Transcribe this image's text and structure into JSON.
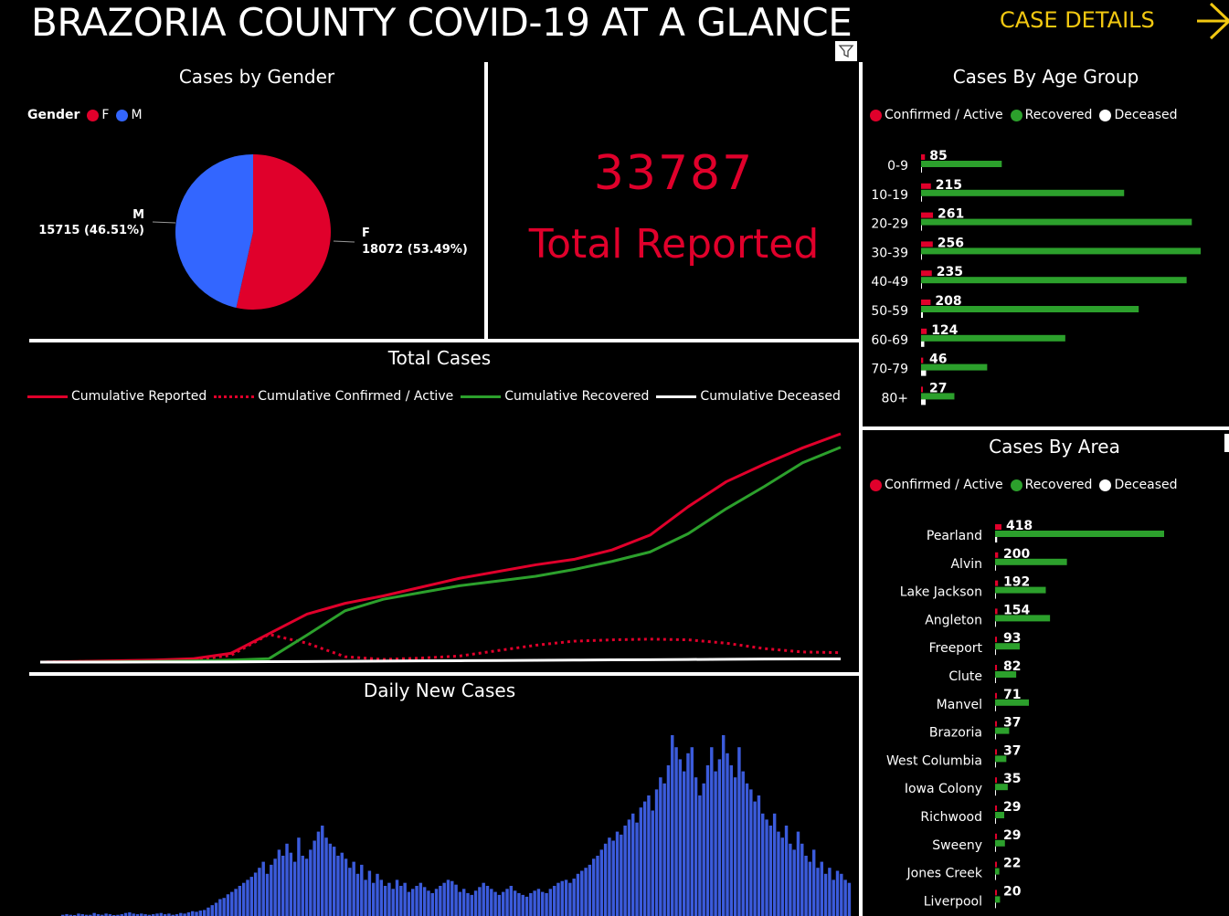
{
  "header": {
    "title": "BRAZORIA COUNTY COVID-19 AT A GLANCE",
    "case_details_label": "CASE DETAILS"
  },
  "kpi": {
    "value": "33787",
    "label": "Total Reported"
  },
  "colors": {
    "confirmed": "#e0002b",
    "recovered": "#2ca02c",
    "deceased": "#ffffff",
    "male": "#3366ff",
    "accent": "#f2c811",
    "daily": "#3b5bdb"
  },
  "gender_panel": {
    "title": "Cases by Gender",
    "legend_title": "Gender",
    "legend": [
      "F",
      "M"
    ],
    "m_letter": "M",
    "m_value": "15715 (46.51%)",
    "f_letter": "F",
    "f_value": "18072 (53.49%)"
  },
  "age_panel": {
    "title": "Cases By Age Group",
    "legend": [
      "Confirmed / Active",
      "Recovered",
      "Deceased"
    ]
  },
  "area_panel": {
    "title": "Cases By Area",
    "legend": [
      "Confirmed / Active",
      "Recovered",
      "Deceased"
    ]
  },
  "total_panel": {
    "title": "Total Cases",
    "legend": [
      "Cumulative Reported",
      "Cumulative Confirmed / Active",
      "Cumulative Recovered",
      "Cumulative Deceased"
    ]
  },
  "daily_panel": {
    "title": "Daily New Cases"
  },
  "chart_data": [
    {
      "type": "pie",
      "title": "Cases by Gender",
      "categories": [
        "F",
        "M"
      ],
      "values": [
        18072,
        15715
      ],
      "percentages": [
        53.49,
        46.51
      ]
    },
    {
      "type": "bar",
      "title": "Cases By Age Group",
      "categories": [
        "0-9",
        "10-19",
        "20-29",
        "30-39",
        "40-49",
        "50-59",
        "60-69",
        "70-79",
        "80+"
      ],
      "series": [
        {
          "name": "Confirmed / Active",
          "values": [
            85,
            215,
            261,
            256,
            235,
            208,
            124,
            46,
            27
          ]
        },
        {
          "name": "Recovered",
          "values": [
            1550,
            3900,
            5200,
            5370,
            5100,
            4180,
            2770,
            1270,
            640
          ]
        },
        {
          "name": "Deceased",
          "values": [
            2,
            4,
            6,
            10,
            20,
            40,
            70,
            110,
            100
          ]
        }
      ]
    },
    {
      "type": "bar",
      "title": "Cases By Area",
      "categories": [
        "Pearland",
        "Alvin",
        "Lake Jackson",
        "Angleton",
        "Freeport",
        "Clute",
        "Manvel",
        "Brazoria",
        "West Columbia",
        "Iowa Colony",
        "Richwood",
        "Sweeny",
        "Jones Creek",
        "Liverpool"
      ],
      "series": [
        {
          "name": "Confirmed / Active",
          "values": [
            418,
            200,
            192,
            154,
            93,
            82,
            71,
            37,
            37,
            35,
            29,
            29,
            22,
            20
          ]
        },
        {
          "name": "Recovered",
          "values": [
            12000,
            5100,
            3600,
            3900,
            1750,
            1500,
            2400,
            1000,
            800,
            900,
            650,
            700,
            300,
            350
          ]
        },
        {
          "name": "Deceased",
          "values": [
            90,
            40,
            30,
            30,
            15,
            12,
            8,
            6,
            6,
            4,
            3,
            4,
            2,
            2
          ]
        }
      ]
    },
    {
      "type": "line",
      "title": "Total Cases",
      "x": [
        0,
        20,
        40,
        60,
        80,
        100,
        120,
        140,
        160,
        180,
        200,
        220,
        240,
        260,
        280,
        300,
        320,
        340,
        360,
        380,
        400,
        420,
        440,
        460,
        480
      ],
      "series": [
        {
          "name": "Cumulative Reported",
          "values": [
            0,
            100,
            200,
            300,
            500,
            1300,
            4200,
            7100,
            8700,
            9800,
            11100,
            12400,
            13400,
            14400,
            15200,
            16600,
            18800,
            23000,
            26700,
            29300,
            31700,
            33787,
            33787,
            33787,
            33787
          ]
        },
        {
          "name": "Cumulative Confirmed / Active",
          "values": [
            0,
            80,
            150,
            200,
            300,
            1000,
            4100,
            2800,
            800,
            400,
            600,
            900,
            1700,
            2500,
            3100,
            3300,
            3400,
            3300,
            2800,
            2000,
            1500,
            1400,
            1400,
            1400,
            1400
          ]
        },
        {
          "name": "Cumulative Recovered",
          "values": [
            0,
            20,
            50,
            100,
            180,
            300,
            500,
            4000,
            7600,
            9300,
            10300,
            11300,
            12000,
            12700,
            13700,
            14900,
            16300,
            19000,
            22700,
            26000,
            29500,
            31800,
            31800,
            31800,
            31800
          ]
        },
        {
          "name": "Cumulative Deceased",
          "values": [
            0,
            0,
            5,
            10,
            20,
            40,
            60,
            90,
            120,
            150,
            180,
            210,
            240,
            270,
            300,
            330,
            360,
            390,
            420,
            450,
            470,
            480,
            480,
            480,
            480
          ]
        }
      ]
    },
    {
      "type": "bar",
      "title": "Daily New Cases",
      "values": [
        2,
        3,
        2,
        1,
        4,
        3,
        2,
        2,
        5,
        3,
        2,
        4,
        3,
        1,
        2,
        3,
        5,
        6,
        4,
        3,
        4,
        3,
        2,
        3,
        4,
        5,
        3,
        4,
        2,
        3,
        5,
        4,
        6,
        8,
        7,
        9,
        10,
        14,
        18,
        22,
        28,
        30,
        36,
        40,
        45,
        50,
        55,
        60,
        65,
        72,
        80,
        90,
        70,
        85,
        95,
        110,
        100,
        120,
        105,
        90,
        130,
        100,
        95,
        110,
        125,
        140,
        150,
        130,
        120,
        115,
        100,
        105,
        95,
        80,
        90,
        70,
        85,
        60,
        75,
        55,
        70,
        60,
        50,
        55,
        45,
        60,
        50,
        55,
        40,
        45,
        50,
        55,
        48,
        42,
        38,
        45,
        50,
        55,
        60,
        58,
        52,
        40,
        45,
        38,
        35,
        42,
        48,
        55,
        50,
        45,
        40,
        35,
        40,
        45,
        50,
        42,
        38,
        35,
        32,
        38,
        42,
        45,
        40,
        38,
        45,
        50,
        55,
        58,
        60,
        55,
        62,
        70,
        75,
        80,
        85,
        95,
        100,
        110,
        120,
        130,
        125,
        140,
        135,
        150,
        160,
        170,
        155,
        180,
        190,
        200,
        175,
        210,
        230,
        220,
        250,
        300,
        280,
        260,
        240,
        270,
        280,
        230,
        200,
        220,
        250,
        280,
        240,
        260,
        300,
        270,
        250,
        230,
        280,
        240,
        220,
        210,
        190,
        200,
        170,
        160,
        150,
        170,
        140,
        130,
        150,
        120,
        110,
        140,
        120,
        100,
        90,
        110,
        80,
        90,
        70,
        80,
        60,
        75,
        70,
        60,
        55
      ]
    }
  ]
}
